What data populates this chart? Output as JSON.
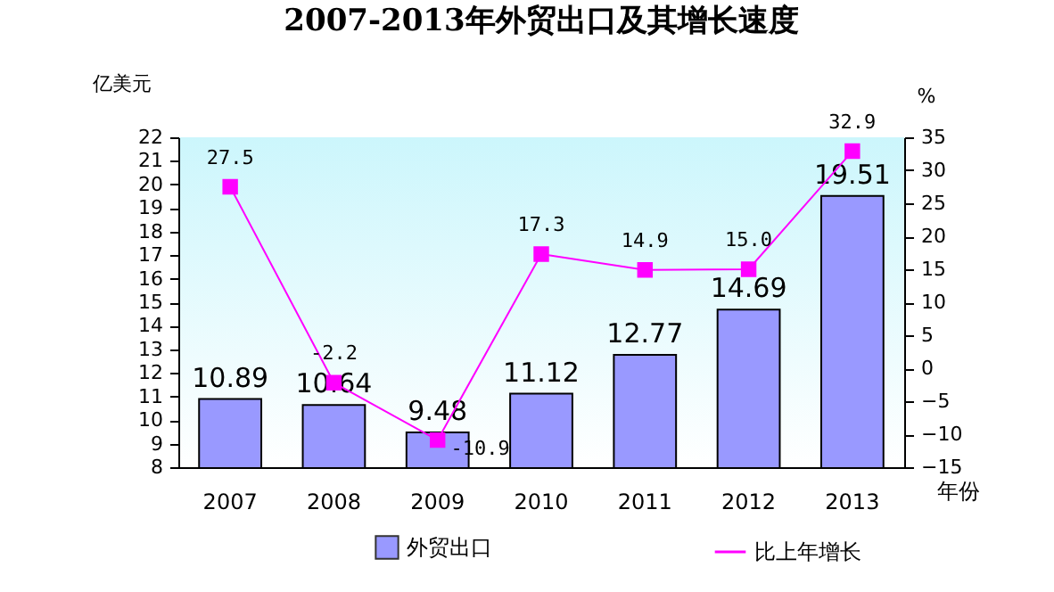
{
  "chart_data": {
    "type": "bar",
    "title": "2007-2013年外贸出口及其增长速度",
    "ylabel": "亿美元",
    "y2label": "%",
    "xlabel": "年份",
    "categories": [
      "2007",
      "2008",
      "2009",
      "2010",
      "2011",
      "2012",
      "2013"
    ],
    "series": [
      {
        "name": "外贸出口",
        "color": "#9999ff",
        "values": [
          10.89,
          10.64,
          9.48,
          11.12,
          12.77,
          14.69,
          19.51
        ]
      },
      {
        "name": "比上年增长",
        "type": "line",
        "axis": "y2",
        "color": "#ff00ff",
        "values": [
          27.5,
          -2.2,
          -10.9,
          17.3,
          14.9,
          15.0,
          32.9
        ],
        "value_labels": [
          "27.5",
          "-2.2",
          "-10.9",
          "17.3",
          "14.9",
          "15.0",
          "32.9"
        ]
      }
    ],
    "ylim": [
      8,
      22
    ],
    "yticks": [
      8,
      9,
      10,
      11,
      12,
      13,
      14,
      15,
      16,
      17,
      18,
      19,
      20,
      21,
      22
    ],
    "y2lim": [
      -15,
      35
    ],
    "y2ticks": [
      -15,
      -10,
      -5,
      0,
      5,
      10,
      15,
      20,
      25,
      30,
      35
    ],
    "data_labels": true,
    "grid": false,
    "legend": "bottom",
    "marker": "square",
    "line_style": "solid"
  }
}
